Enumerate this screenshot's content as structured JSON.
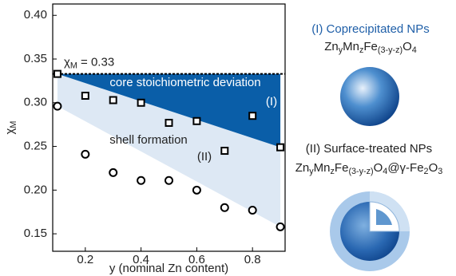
{
  "chart_data": {
    "type": "scatter",
    "x_label": "y (nominal Zn content)",
    "y_label_parts": [
      {
        "text": "χ",
        "sub": false
      },
      {
        "text": "M",
        "sub": true
      }
    ],
    "xlim": [
      0.083,
      0.917
    ],
    "ylim": [
      0.13,
      0.413
    ],
    "xticks": [
      0.2,
      0.4,
      0.6,
      0.8
    ],
    "yticks": [
      0.15,
      {
        "value": 0.2,
        "label": "0.20"
      },
      0.25,
      {
        "value": 0.3,
        "label": "0.30"
      },
      0.35,
      {
        "value": 0.4,
        "label": "0.40"
      }
    ],
    "x": [
      0.1,
      0.2,
      0.3,
      0.4,
      0.5,
      0.6,
      0.7,
      0.8,
      0.9
    ],
    "series": [
      {
        "name": "(I)",
        "marker": "square",
        "color": "#000000",
        "values": [
          0.333,
          0.308,
          0.303,
          0.3,
          0.277,
          0.279,
          0.245,
          0.285,
          0.249
        ]
      },
      {
        "name": "(II)",
        "marker": "circle",
        "color": "#000000",
        "values": [
          0.296,
          0.241,
          0.22,
          0.211,
          0.211,
          0.2,
          0.18,
          0.177,
          0.158
        ]
      }
    ],
    "reference_line": {
      "value": 0.333,
      "label_parts": [
        {
          "text": "χ",
          "sub": false
        },
        {
          "text": "M",
          "sub": true
        },
        {
          "text": " = 0.33",
          "sub": false
        }
      ]
    },
    "region_colors": {
      "core": "#0a5ea8",
      "shell": "#dde8f4"
    },
    "annotations": {
      "core": "core stoichiometric deviation",
      "core_tag": "(I)",
      "shell": "shell formation",
      "shell_tag": "(II)"
    }
  },
  "panel": {
    "item_1": {
      "title": "(I) Coprecipitated NPs",
      "formula": [
        {
          "text": "Zn",
          "sub": false
        },
        {
          "text": "y",
          "sub": true
        },
        {
          "text": "Mn",
          "sub": false
        },
        {
          "text": "z",
          "sub": true
        },
        {
          "text": "Fe",
          "sub": false
        },
        {
          "text": "(3-y-z)",
          "sub": true
        },
        {
          "text": "O",
          "sub": false
        },
        {
          "text": "4",
          "sub": true
        }
      ]
    },
    "item_2": {
      "title": "(II) Surface-treated NPs",
      "formula": [
        {
          "text": "Zn",
          "sub": false
        },
        {
          "text": "y",
          "sub": true
        },
        {
          "text": "Mn",
          "sub": false
        },
        {
          "text": "z",
          "sub": true
        },
        {
          "text": "Fe",
          "sub": false
        },
        {
          "text": "(3-y-z)",
          "sub": true
        },
        {
          "text": "O",
          "sub": false
        },
        {
          "text": "4",
          "sub": true
        },
        {
          "text": "@γ-Fe",
          "sub": false
        },
        {
          "text": "2",
          "sub": true
        },
        {
          "text": "O",
          "sub": false
        },
        {
          "text": "3",
          "sub": true
        }
      ]
    }
  }
}
